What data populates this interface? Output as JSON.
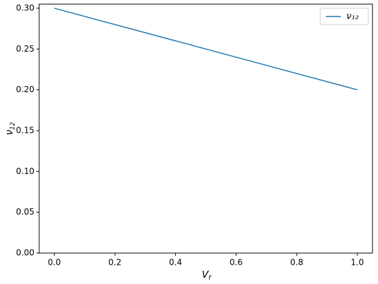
{
  "chart_data": {
    "type": "line",
    "x_label": {
      "base": "V",
      "sub": "f"
    },
    "y_label": {
      "base": "ν",
      "sub": "12"
    },
    "x": [
      0,
      1
    ],
    "series": [
      {
        "name": "ν₁₂",
        "color": "#1f77b4",
        "values": [
          0.3,
          0.2
        ]
      }
    ],
    "xlim": [
      -0.05,
      1.05
    ],
    "xticks": [
      {
        "value": 0,
        "label": "0.0"
      },
      0.2,
      0.4,
      0.6,
      0.8,
      {
        "value": 1,
        "label": "1.0"
      }
    ],
    "ylim": [
      0,
      0.305
    ],
    "yticks": [
      {
        "value": 0,
        "label": "0.00"
      },
      0.05,
      {
        "value": 0.1,
        "label": "0.10"
      },
      0.15,
      {
        "value": 0.2,
        "label": "0.20"
      },
      0.25,
      {
        "value": 0.3,
        "label": "0.30"
      }
    ],
    "grid": false,
    "legend": "upper right"
  }
}
